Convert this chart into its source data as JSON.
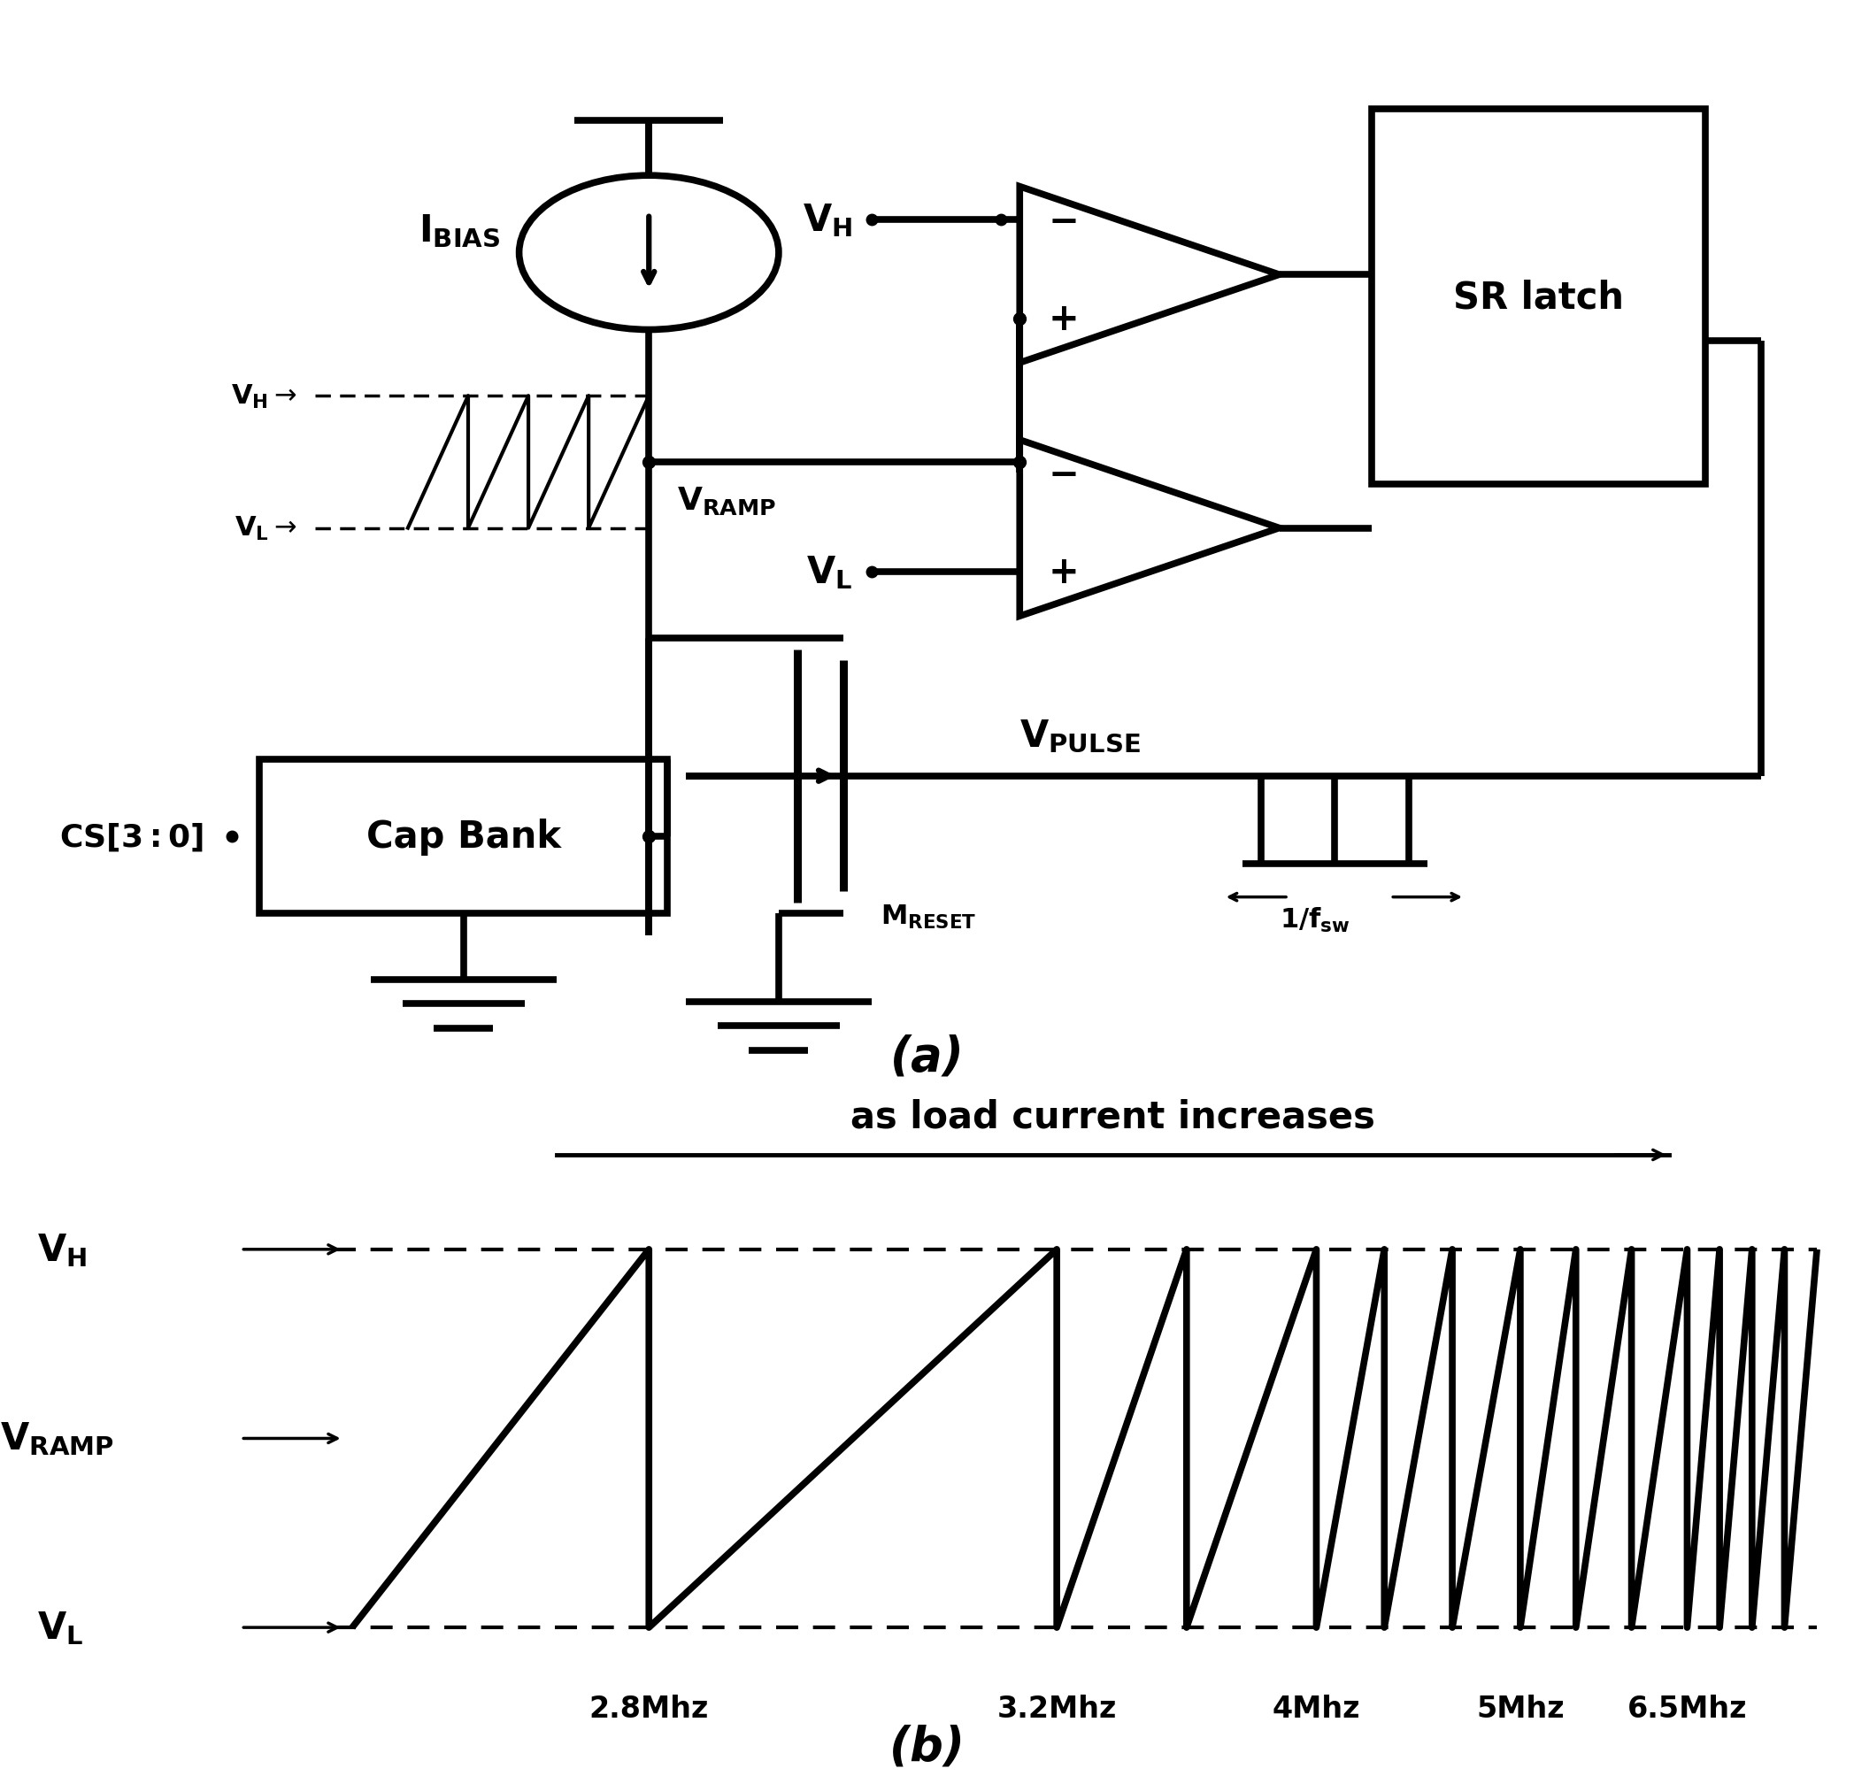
{
  "fig_width": 20.95,
  "fig_height": 20.08,
  "bg_color": "#ffffff",
  "lw": 4.0,
  "lw_thick": 5.5,
  "lw_thin": 2.5,
  "font_size_large": 30,
  "font_size_medium": 26,
  "font_size_small": 22,
  "label_a": "(a)",
  "label_b": "(b)",
  "waveform_label": "as load current increases",
  "freqs": [
    "2.8Mhz",
    "3.2Mhz",
    "4Mhz",
    "5Mhz",
    "6.5Mhz"
  ]
}
